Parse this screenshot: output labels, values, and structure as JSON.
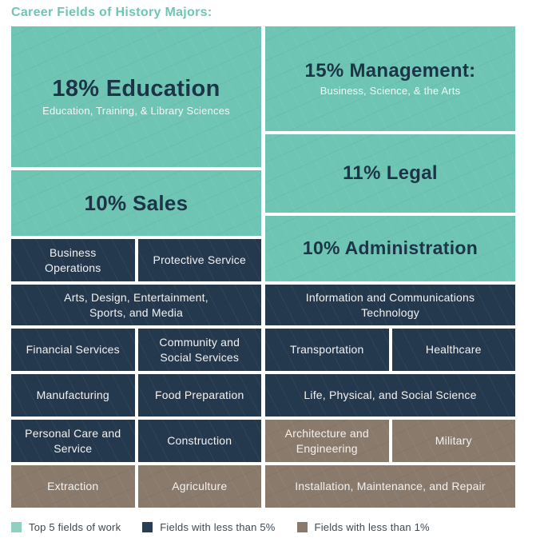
{
  "title": "Career Fields of History Majors:",
  "colors": {
    "teal_top5": "#6FC5B4",
    "navy_lt5": "#25394E",
    "brown_lt1": "#8A7A6B",
    "heading_on_teal": "#1C3448",
    "label_on_dark": "#F3F2F0",
    "title_text": "#6FC5B4",
    "legend_text": "#3D4852"
  },
  "chart_data": {
    "type": "treemap",
    "title": "Career Fields of History Majors:",
    "legend": [
      {
        "label": "Top 5 fields of work",
        "color": "#8ED1C2",
        "category": "top5"
      },
      {
        "label": "Fields with less than 5%",
        "color": "#2A3E53",
        "category": "lt5"
      },
      {
        "label": "Fields with less than 1%",
        "color": "#8A7A6C",
        "category": "lt1"
      }
    ],
    "tiles": {
      "education": {
        "name": "Education",
        "percent": 18,
        "heading": "18% Education",
        "subtitle": "Education, Training, & Library Sciences",
        "category": "top5"
      },
      "management": {
        "name": "Management",
        "percent": 15,
        "heading": "15% Management:",
        "subtitle": "Business, Science, & the Arts",
        "category": "top5"
      },
      "legal": {
        "name": "Legal",
        "percent": 11,
        "heading": "11% Legal",
        "category": "top5"
      },
      "sales": {
        "name": "Sales",
        "percent": 10,
        "heading": "10% Sales",
        "category": "top5"
      },
      "administration": {
        "name": "Administration",
        "percent": 10,
        "heading": "10% Administration",
        "category": "top5"
      },
      "business_operations": {
        "label": "Business Operations",
        "category": "lt5"
      },
      "protective_service": {
        "label": "Protective Service",
        "category": "lt5"
      },
      "arts_media": {
        "label": "Arts, Design, Entertainment, Sports, and Media",
        "category": "lt5"
      },
      "ict": {
        "label": "Information and Communications Technology",
        "category": "lt5"
      },
      "financial_services": {
        "label": "Financial Services",
        "category": "lt5"
      },
      "community_social": {
        "label": "Community and Social Services",
        "category": "lt5"
      },
      "transportation": {
        "label": "Transportation",
        "category": "lt5"
      },
      "healthcare": {
        "label": "Healthcare",
        "category": "lt5"
      },
      "manufacturing": {
        "label": "Manufacturing",
        "category": "lt5"
      },
      "food_preparation": {
        "label": "Food Preparation",
        "category": "lt5"
      },
      "life_science": {
        "label": "Life, Physical, and Social Science",
        "category": "lt5"
      },
      "personal_care": {
        "label": "Personal Care and Service",
        "category": "lt5"
      },
      "construction": {
        "label": "Construction",
        "category": "lt5"
      },
      "architecture_engineering": {
        "label": "Architecture and Engineering",
        "category": "lt1"
      },
      "military": {
        "label": "Military",
        "category": "lt1"
      },
      "extraction": {
        "label": "Extraction",
        "category": "lt1"
      },
      "agriculture": {
        "label": "Agriculture",
        "category": "lt1"
      },
      "installation": {
        "label": "Installation, Maintenance, and Repair",
        "category": "lt1"
      }
    }
  }
}
